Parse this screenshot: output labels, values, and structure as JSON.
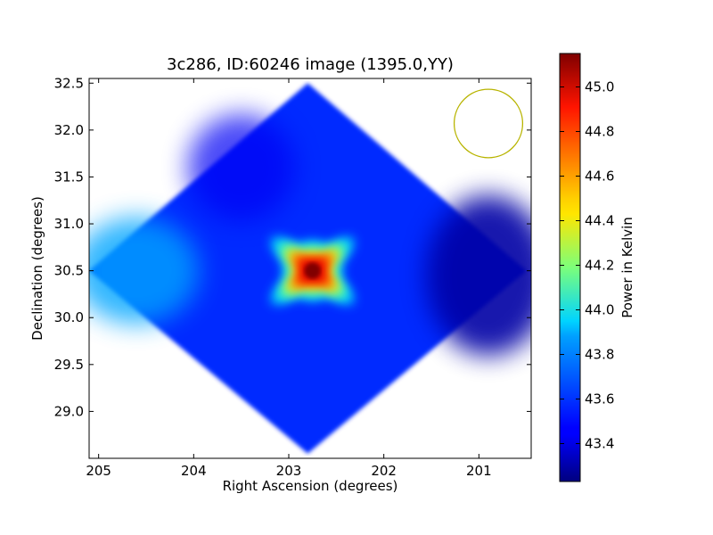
{
  "chart_data": {
    "type": "heatmap",
    "title": "3c286, ID:60246 image (1395.0,YY)",
    "xlabel": "Right Ascension (degrees)",
    "ylabel": "Declination (degrees)",
    "xlim": [
      205.1,
      200.45
    ],
    "ylim": [
      28.5,
      32.55
    ],
    "x_ticks": [
      205,
      204,
      203,
      202,
      201
    ],
    "y_ticks": [
      29.0,
      29.5,
      30.0,
      30.5,
      31.0,
      31.5,
      32.0,
      32.5
    ],
    "x_tick_labels": [
      "205",
      "204",
      "203",
      "202",
      "201"
    ],
    "y_tick_labels": [
      "29.0",
      "29.5",
      "30.0",
      "30.5",
      "31.0",
      "31.5",
      "32.0",
      "32.5"
    ],
    "grid": false,
    "colormap": "jet",
    "colorbar": {
      "label": "Power in Kelvin",
      "range": [
        43.23,
        45.15
      ],
      "ticks": [
        43.4,
        43.6,
        43.8,
        44.0,
        44.2,
        44.4,
        44.6,
        44.8,
        45.0
      ],
      "tick_labels": [
        "43.4",
        "43.6",
        "43.8",
        "44.0",
        "44.2",
        "44.4",
        "44.6",
        "44.8",
        "45.0"
      ]
    },
    "footprint_corners_deg": [
      [
        202.8,
        32.5
      ],
      [
        200.5,
        30.5
      ],
      [
        202.8,
        28.55
      ],
      [
        205.1,
        30.5
      ]
    ],
    "peak": {
      "ra": 202.75,
      "dec": 30.5,
      "value": 45.15
    },
    "background_level": 43.55,
    "beam_circle": {
      "ra": 200.9,
      "dec": 32.07,
      "radius_deg": 0.36,
      "color": "#b8b400"
    }
  }
}
